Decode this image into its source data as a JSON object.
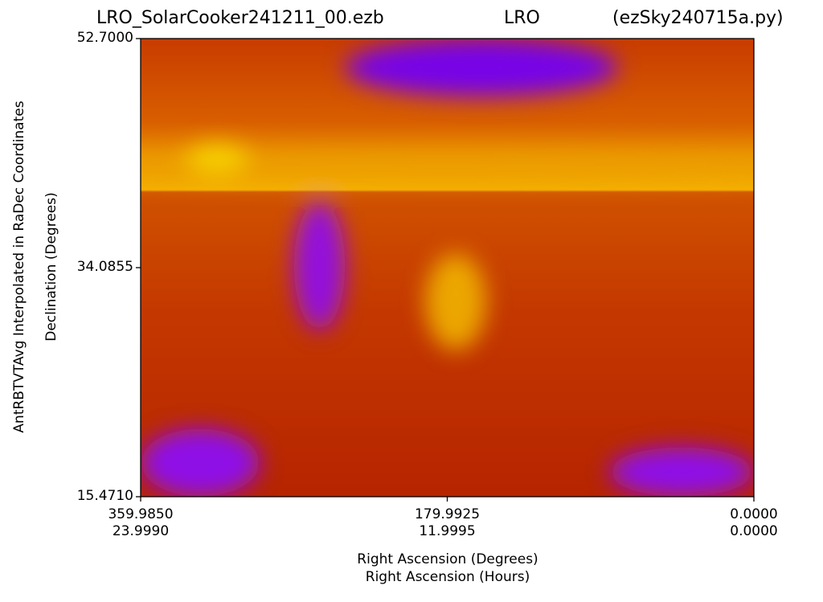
{
  "header": {
    "file": "LRO_SolarCooker241211_00.ezb",
    "site": "LRO",
    "program": "(ezSky240715a.py)"
  },
  "chart_data": {
    "type": "heatmap",
    "title": "LRO_SolarCooker241211_00.ezb LRO (ezSky240715a.py)",
    "ylabel_lines": [
      "AntRBTVTAvg Interpolated in RaDec Coordinates",
      "Declination (Degrees)"
    ],
    "xlabel_lines": [
      "Right Ascension (Degrees)",
      "Right Ascension (Hours)"
    ],
    "xlim_degrees": [
      359.985,
      0.0
    ],
    "xlim_hours": [
      23.999,
      0.0
    ],
    "ylim": [
      15.471,
      52.7
    ],
    "x_ticks": [
      {
        "deg_label": "359.9850",
        "hour_label": "23.9990",
        "value": 359.985
      },
      {
        "deg_label": "179.9925",
        "hour_label": "11.9995",
        "value": 179.9925
      },
      {
        "deg_label": "0.0000",
        "hour_label": "0.0000",
        "value": 0.0
      }
    ],
    "y_ticks": [
      {
        "label": "15.4710",
        "value": 15.471
      },
      {
        "label": "34.0855",
        "value": 34.0855
      },
      {
        "label": "52.7000",
        "value": 52.7
      }
    ],
    "colormap": "gnuplot",
    "colorbar": false,
    "grid": false,
    "features": [
      {
        "kind": "hot band",
        "ra": [
          359.985,
          0.0
        ],
        "dec": [
          41.0,
          43.5
        ],
        "level": 0.85
      },
      {
        "kind": "hot spot",
        "ra": 315.0,
        "dec": 43.0,
        "level": 0.95
      },
      {
        "kind": "hot spot",
        "ra": 175.0,
        "dec": 31.3,
        "level": 0.9
      },
      {
        "kind": "cold region",
        "ra": [
          240.0,
          80.0
        ],
        "dec": [
          48.0,
          52.7
        ],
        "level": 0.2
      },
      {
        "kind": "cold region",
        "ra": [
          359.985,
          290.0
        ],
        "dec": [
          15.471,
          21.0
        ],
        "level": 0.3
      },
      {
        "kind": "cold region",
        "ra": [
          85.0,
          0.0
        ],
        "dec": [
          15.471,
          19.5
        ],
        "level": 0.3
      },
      {
        "kind": "cold streak",
        "ra": [
          270.0,
          240.0
        ],
        "dec": [
          29.0,
          39.5
        ],
        "level": 0.32
      }
    ]
  }
}
